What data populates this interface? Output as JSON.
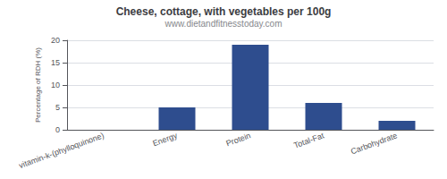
{
  "chart_data": {
    "type": "bar",
    "title": "Cheese, cottage, with vegetables per 100g",
    "subtitle": "www.dietandfitnesstoday.com",
    "categories": [
      "vitamin-k-(phylloquinone)",
      "Energy",
      "Protein",
      "Total-Fat",
      "Carbohydrate"
    ],
    "values": [
      0,
      5,
      19,
      6,
      2
    ],
    "color": "#2e4d8e",
    "ylabel": "Percentage of RDH (%)",
    "ylim": [
      0,
      20
    ],
    "yticks": [
      0,
      5,
      10,
      15,
      20
    ],
    "grid": true
  }
}
